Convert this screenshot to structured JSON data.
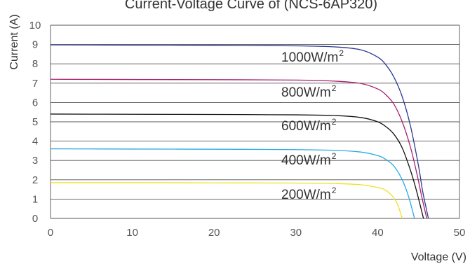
{
  "chart_data": {
    "type": "line",
    "title": "Current-Voltage Curve of (NCS-6AP320)",
    "xlabel": "Voltage (V)",
    "ylabel": "Current (A)",
    "xlim": [
      0,
      50
    ],
    "ylim": [
      0,
      10
    ],
    "xticks": [
      "0",
      "10",
      "20",
      "30",
      "40",
      "50"
    ],
    "yticks": [
      "0",
      "1",
      "2",
      "3",
      "4",
      "5",
      "6",
      "7",
      "8",
      "9",
      "10"
    ],
    "grid": "horizontal",
    "series": [
      {
        "name": "1000W/m",
        "color": "#2b3990",
        "x": [
          0,
          10,
          20,
          30,
          35,
          38,
          40,
          41,
          42,
          43,
          44,
          45,
          45.5,
          46.2
        ],
        "y": [
          8.98,
          8.97,
          8.96,
          8.93,
          8.87,
          8.72,
          8.35,
          7.95,
          7.3,
          6.3,
          4.8,
          2.7,
          1.4,
          0
        ]
      },
      {
        "name": "800W/m",
        "color": "#a8206f",
        "x": [
          0,
          10,
          20,
          30,
          35,
          38,
          40,
          41,
          42,
          43,
          44,
          44.8,
          45.4,
          46.0
        ],
        "y": [
          7.2,
          7.19,
          7.18,
          7.16,
          7.1,
          6.98,
          6.7,
          6.4,
          5.9,
          5.0,
          3.7,
          2.3,
          1.1,
          0
        ]
      },
      {
        "name": "600W/m",
        "color": "#111111",
        "x": [
          0,
          10,
          20,
          30,
          35,
          38,
          40,
          41,
          42,
          43,
          44,
          44.7,
          45.6
        ],
        "y": [
          5.4,
          5.39,
          5.38,
          5.36,
          5.32,
          5.22,
          5.0,
          4.75,
          4.35,
          3.65,
          2.5,
          1.5,
          0
        ]
      },
      {
        "name": "400W/m",
        "color": "#29abe2",
        "x": [
          0,
          10,
          20,
          30,
          35,
          38,
          40,
          41,
          42,
          43,
          43.8,
          44.5
        ],
        "y": [
          3.6,
          3.59,
          3.58,
          3.56,
          3.52,
          3.43,
          3.25,
          3.05,
          2.7,
          2.0,
          1.1,
          0
        ]
      },
      {
        "name": "200W/m",
        "color": "#f0e020",
        "x": [
          0,
          10,
          20,
          30,
          35,
          38,
          40,
          41,
          42,
          42.5,
          43.0
        ],
        "y": [
          1.85,
          1.85,
          1.84,
          1.83,
          1.8,
          1.74,
          1.6,
          1.45,
          1.05,
          0.65,
          0
        ]
      }
    ],
    "series_label_sup": "2"
  }
}
